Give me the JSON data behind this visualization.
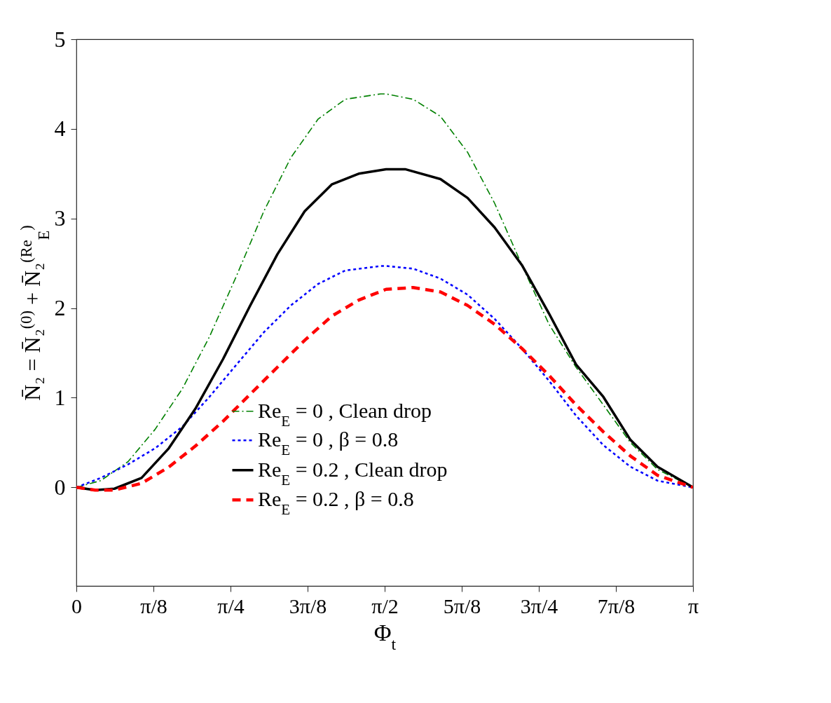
{
  "chart_data": {
    "type": "line",
    "xlabel": "Φ$_{t}$",
    "ylabel": "N̄₂ = N̄₂$^{(0)}$ + N̄₂$^{(Re}$$_{E}$$^{)}$",
    "xlim": [
      0,
      3.1416
    ],
    "ylim": [
      -1.1,
      5
    ],
    "xticks": [
      0,
      {
        "value": 0.3927,
        "label": "π/8"
      },
      {
        "value": 0.7854,
        "label": "π/4"
      },
      {
        "value": 1.1781,
        "label": "3π/8"
      },
      {
        "value": 1.5708,
        "label": "π/2"
      },
      {
        "value": 1.9635,
        "label": "5π/8"
      },
      {
        "value": 2.3562,
        "label": "3π/4"
      },
      {
        "value": 2.7489,
        "label": "7π/8"
      },
      {
        "value": 3.1416,
        "label": "π"
      }
    ],
    "yticks": [
      0,
      1,
      2,
      3,
      4,
      5
    ],
    "grid": false,
    "legend": "bottom",
    "marker": "none",
    "series": [
      {
        "name": "Re$_{E}$ = 0 , Clean drop",
        "color": "#008000",
        "line_style": "dashdot",
        "x": [
          0,
          0.124,
          0.263,
          0.401,
          0.54,
          0.678,
          0.816,
          0.955,
          1.093,
          1.232,
          1.37,
          1.55,
          1.578,
          1.716,
          1.855,
          1.993,
          2.131,
          2.27,
          2.408,
          2.546,
          2.685,
          2.823,
          2.961,
          3.128,
          3.1416
        ],
        "values": [
          0,
          0.075,
          0.286,
          0.647,
          1.1,
          1.68,
          2.36,
          3.08,
          3.68,
          4.11,
          4.33,
          4.39,
          4.39,
          4.33,
          4.14,
          3.74,
          3.17,
          2.48,
          1.82,
          1.34,
          0.92,
          0.5,
          0.2,
          0.015,
          0
        ]
      },
      {
        "name": "Re$_{E}$ = 0 , β = 0.8",
        "color": "#0000ff",
        "line_style": "dotted",
        "x": [
          0,
          0.124,
          0.263,
          0.401,
          0.54,
          0.678,
          0.816,
          0.955,
          1.093,
          1.232,
          1.37,
          1.55,
          1.578,
          1.716,
          1.855,
          1.993,
          2.131,
          2.27,
          2.408,
          2.546,
          2.685,
          2.823,
          2.961,
          3.1416
        ],
        "values": [
          0,
          0.105,
          0.256,
          0.436,
          0.677,
          1.01,
          1.37,
          1.73,
          2.03,
          2.27,
          2.42,
          2.47,
          2.47,
          2.44,
          2.33,
          2.15,
          1.88,
          1.55,
          1.19,
          0.8,
          0.47,
          0.23,
          0.075,
          0
        ]
      },
      {
        "name": "Re$_{E}$ = 0.2 , Clean drop",
        "color": "#000000",
        "line_style": "solid",
        "x": [
          0,
          0.096,
          0.194,
          0.332,
          0.471,
          0.609,
          0.747,
          0.886,
          1.024,
          1.163,
          1.301,
          1.439,
          1.578,
          1.675,
          1.855,
          1.993,
          2.131,
          2.27,
          2.408,
          2.546,
          2.685,
          2.823,
          2.961,
          3.1416
        ],
        "values": [
          0,
          -0.03,
          -0.015,
          0.105,
          0.436,
          0.887,
          1.43,
          2.03,
          2.6,
          3.08,
          3.38,
          3.5,
          3.55,
          3.55,
          3.44,
          3.23,
          2.9,
          2.48,
          1.94,
          1.37,
          1.01,
          0.53,
          0.23,
          0
        ]
      },
      {
        "name": "Re$_{E}$ = 0.2 , β = 0.8",
        "color": "#ff0000",
        "line_style": "dashed",
        "x": [
          0,
          0.096,
          0.194,
          0.332,
          0.471,
          0.609,
          0.747,
          0.886,
          1.024,
          1.163,
          1.301,
          1.439,
          1.578,
          1.716,
          1.855,
          1.993,
          2.131,
          2.27,
          2.408,
          2.546,
          2.685,
          2.823,
          2.961,
          3.1416
        ],
        "values": [
          0,
          -0.03,
          -0.03,
          0.045,
          0.226,
          0.466,
          0.737,
          1.04,
          1.34,
          1.64,
          1.91,
          2.09,
          2.21,
          2.23,
          2.18,
          2.03,
          1.82,
          1.55,
          1.25,
          0.92,
          0.62,
          0.35,
          0.135,
          0
        ]
      }
    ]
  }
}
